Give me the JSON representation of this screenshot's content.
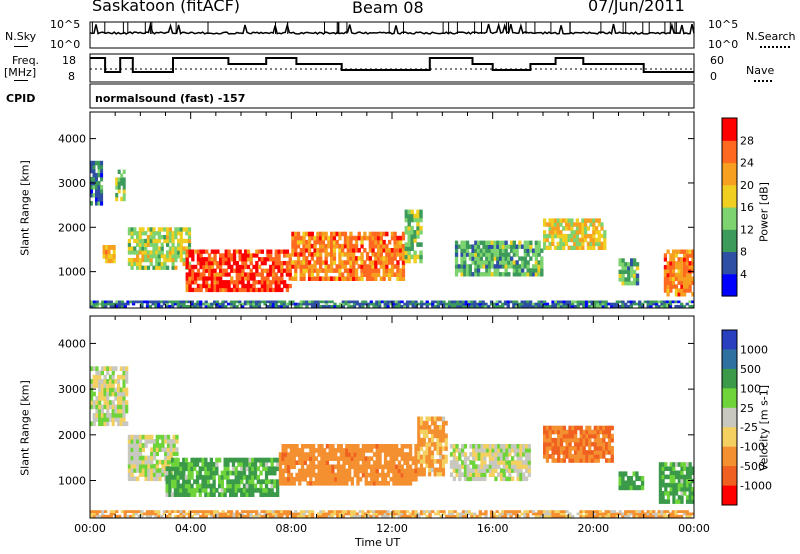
{
  "header": {
    "station": "Saskatoon (fitACF)",
    "beam": "Beam 08",
    "date": "07/Jun/2011"
  },
  "top_panels": {
    "nsky_label": "N.Sky",
    "nsky_ticks": [
      "10^5",
      "10^0"
    ],
    "nsearch_label": "N.Search",
    "freq_label_1": "Freq.",
    "freq_label_2": "[MHz]",
    "freq_ticks": [
      "18",
      "8"
    ],
    "nave_ticks": [
      "60",
      "0"
    ],
    "nave_label": "Nave",
    "cpid_label": "CPID",
    "cpid_text": "normalsound (fast) -157"
  },
  "chart_data": [
    {
      "type": "heatmap",
      "name": "power",
      "ylabel": "Slant Range [km]",
      "yticks": [
        1000,
        2000,
        3000,
        4000
      ],
      "ylim": [
        180,
        4600
      ],
      "xlim": [
        0,
        24
      ],
      "colorbar_label": "Power [dB]",
      "colorbar_ticks": [
        4,
        8,
        12,
        16,
        20,
        24,
        28
      ],
      "colorbar_colors": [
        "#0000ff",
        "#2e4fa3",
        "#3c9a5a",
        "#7dd36f",
        "#f0cf20",
        "#f7a020",
        "#ff6a20",
        "#ff0000"
      ],
      "blobs": [
        {
          "t0": 0.0,
          "t1": 0.5,
          "r0": 2500,
          "r1": 3500,
          "v": 8
        },
        {
          "t0": 1.0,
          "t1": 1.4,
          "r0": 2600,
          "r1": 3300,
          "v": 14
        },
        {
          "t0": 0.5,
          "t1": 1.0,
          "r0": 1200,
          "r1": 1600,
          "v": 20
        },
        {
          "t0": 1.5,
          "t1": 4.0,
          "r0": 1050,
          "r1": 2000,
          "v": 16
        },
        {
          "t0": 3.8,
          "t1": 8.0,
          "r0": 550,
          "r1": 1500,
          "v": 28
        },
        {
          "t0": 8.0,
          "t1": 12.5,
          "r0": 800,
          "r1": 1900,
          "v": 24
        },
        {
          "t0": 12.5,
          "t1": 13.2,
          "r0": 1200,
          "r1": 2400,
          "v": 14
        },
        {
          "t0": 14.5,
          "t1": 18.0,
          "r0": 900,
          "r1": 1700,
          "v": 12
        },
        {
          "t0": 18.0,
          "t1": 20.5,
          "r0": 1500,
          "r1": 2200,
          "v": 18
        },
        {
          "t0": 21.0,
          "t1": 21.8,
          "r0": 700,
          "r1": 1300,
          "v": 12
        },
        {
          "t0": 22.8,
          "t1": 24.0,
          "r0": 450,
          "r1": 1500,
          "v": 24
        },
        {
          "t0": 0.0,
          "t1": 24.0,
          "r0": 200,
          "r1": 350,
          "v": 8
        }
      ]
    },
    {
      "type": "heatmap",
      "name": "velocity",
      "ylabel": "Slant Range [km]",
      "xlabel": "Time UT",
      "xticks": [
        "00:00",
        "04:00",
        "08:00",
        "12:00",
        "16:00",
        "20:00",
        "00:00"
      ],
      "yticks": [
        1000,
        2000,
        3000,
        4000
      ],
      "ylim": [
        180,
        4600
      ],
      "xlim": [
        0,
        24
      ],
      "colorbar_label": "Velocity [m s-1]",
      "colorbar_ticks": [
        1000,
        500,
        100,
        25,
        -25,
        -100,
        -500,
        -1000
      ],
      "colorbar_colors": [
        "#2a3fbf",
        "#2e70a0",
        "#3a9a4a",
        "#6ed43a",
        "#c8c8c0",
        "#f4d060",
        "#f49030",
        "#f06020",
        "#ff0000"
      ],
      "blobs": [
        {
          "t0": 0.0,
          "t1": 1.5,
          "r0": 2200,
          "r1": 3500,
          "v": 0
        },
        {
          "t0": 1.5,
          "t1": 3.5,
          "r0": 1000,
          "r1": 2000,
          "v": 0
        },
        {
          "t0": 3.0,
          "t1": 7.5,
          "r0": 650,
          "r1": 1500,
          "v": 80
        },
        {
          "t0": 7.5,
          "t1": 13.0,
          "r0": 900,
          "r1": 1800,
          "v": -250
        },
        {
          "t0": 13.0,
          "t1": 14.2,
          "r0": 1100,
          "r1": 2400,
          "v": -80
        },
        {
          "t0": 14.3,
          "t1": 17.5,
          "r0": 1000,
          "r1": 1800,
          "v": 0
        },
        {
          "t0": 18.0,
          "t1": 20.8,
          "r0": 1400,
          "r1": 2200,
          "v": -300
        },
        {
          "t0": 21.0,
          "t1": 22.0,
          "r0": 800,
          "r1": 1200,
          "v": 80
        },
        {
          "t0": 22.6,
          "t1": 24.0,
          "r0": 500,
          "r1": 1400,
          "v": 80
        },
        {
          "t0": 0.0,
          "t1": 24.0,
          "r0": 200,
          "r1": 350,
          "v": -60
        }
      ]
    }
  ]
}
